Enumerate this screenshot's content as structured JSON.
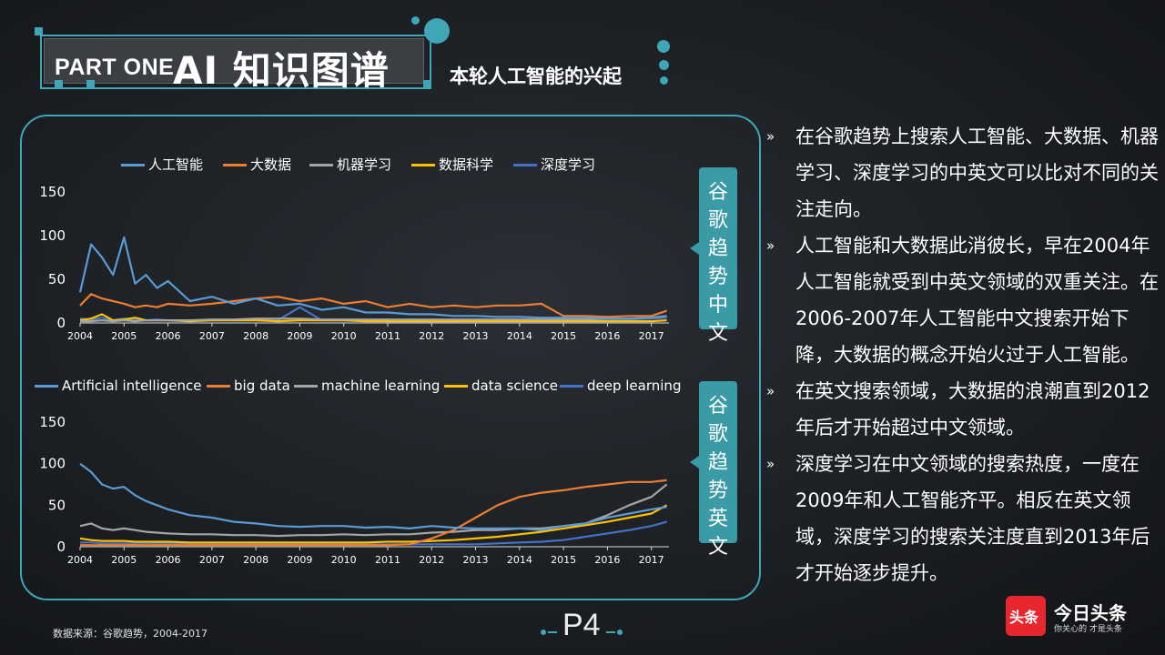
{
  "header": {
    "part_label": "PART ONE",
    "title": "AI 知识图谱",
    "subtitle": "本轮人工智能的兴起"
  },
  "tags": {
    "top": "谷歌趋势中文",
    "bottom": "谷歌趋势英文"
  },
  "bullets": [
    "在谷歌趋势上搜索人工智能、大数据、机器学习、深度学习的中英文可以比对不同的关注走向。",
    "人工智能和大数据此消彼长，早在2004年人工智能就受到中英文领域的双重关注。在2006-2007年人工智能中文搜索开始下降，大数据的概念开始火过于人工智能。",
    "在英文搜索领域，大数据的浪潮直到2012年后才开始超过中文领域。",
    "深度学习在中文领域的搜索热度，一度在2009年和人工智能齐平。相反在英文领域，深度学习的搜索关注度直到2013年后才开始逐步提升。"
  ],
  "bullet_mark": "»",
  "footer": {
    "source": "数据来源：谷歌趋势，2004-2017",
    "page": "P4",
    "logo_text": "头条",
    "brand": "今日头条",
    "slogan": "你关心的 才是头条"
  },
  "colors": {
    "accent": "#3ea6b4",
    "s1": "#5b9bd5",
    "s2": "#ed7d31",
    "s3": "#a5a5a5",
    "s4": "#ffc000",
    "s5": "#4472c4"
  },
  "chart_data": [
    {
      "type": "line",
      "ylim": [
        0,
        150
      ],
      "yticks": [
        "0",
        "50",
        "100",
        "150"
      ],
      "xticks": [
        "2004",
        "2005",
        "2006",
        "2007",
        "2008",
        "2009",
        "2010",
        "2011",
        "2012",
        "2013",
        "2014",
        "2015",
        "2016",
        "2017"
      ],
      "x": [
        2004.0,
        2004.25,
        2004.5,
        2004.75,
        2005.0,
        2005.25,
        2005.5,
        2005.75,
        2006.0,
        2006.5,
        2007.0,
        2007.5,
        2008.0,
        2008.5,
        2009.0,
        2009.5,
        2010.0,
        2010.5,
        2011.0,
        2011.5,
        2012.0,
        2012.5,
        2013.0,
        2013.5,
        2014.0,
        2014.5,
        2015.0,
        2015.5,
        2016.0,
        2016.5,
        2017.0,
        2017.35
      ],
      "series": [
        {
          "name": "人工智能",
          "color": "#5b9bd5",
          "values": [
            35,
            90,
            75,
            55,
            98,
            45,
            55,
            40,
            48,
            25,
            30,
            22,
            28,
            20,
            22,
            15,
            18,
            12,
            12,
            10,
            10,
            8,
            8,
            7,
            7,
            6,
            6,
            6,
            5,
            5,
            6,
            8
          ]
        },
        {
          "name": "大数据",
          "color": "#ed7d31",
          "values": [
            20,
            33,
            28,
            25,
            22,
            18,
            20,
            18,
            22,
            20,
            22,
            25,
            28,
            30,
            25,
            28,
            22,
            25,
            18,
            22,
            18,
            20,
            18,
            20,
            20,
            22,
            8,
            8,
            7,
            8,
            8,
            14
          ]
        },
        {
          "name": "机器学习",
          "color": "#a5a5a5",
          "values": [
            2,
            2,
            3,
            2,
            3,
            2,
            3,
            3,
            3,
            3,
            4,
            4,
            5,
            5,
            5,
            4,
            4,
            4,
            4,
            4,
            4,
            4,
            4,
            4,
            4,
            4,
            4,
            4,
            5,
            5,
            6,
            8
          ]
        },
        {
          "name": "数据科学",
          "color": "#ffc000",
          "values": [
            3,
            5,
            10,
            3,
            4,
            6,
            3,
            3,
            3,
            2,
            3,
            3,
            3,
            2,
            3,
            3,
            3,
            2,
            2,
            2,
            2,
            2,
            2,
            2,
            2,
            2,
            2,
            2,
            2,
            2,
            2,
            3
          ]
        },
        {
          "name": "深度学习",
          "color": "#4472c4",
          "values": [
            5,
            4,
            6,
            3,
            5,
            4,
            3,
            4,
            3,
            3,
            3,
            3,
            3,
            3,
            18,
            3,
            3,
            3,
            2,
            2,
            2,
            2,
            3,
            3,
            3,
            3,
            3,
            3,
            3,
            4,
            5,
            6
          ]
        }
      ]
    },
    {
      "type": "line",
      "ylim": [
        0,
        150
      ],
      "yticks": [
        "0",
        "50",
        "100",
        "150"
      ],
      "xticks": [
        "2004",
        "2005",
        "2006",
        "2007",
        "2008",
        "2009",
        "2010",
        "2011",
        "2012",
        "2013",
        "2014",
        "2015",
        "2016",
        "2017"
      ],
      "x": [
        2004.0,
        2004.25,
        2004.5,
        2004.75,
        2005.0,
        2005.25,
        2005.5,
        2005.75,
        2006.0,
        2006.5,
        2007.0,
        2007.5,
        2008.0,
        2008.5,
        2009.0,
        2009.5,
        2010.0,
        2010.5,
        2011.0,
        2011.5,
        2012.0,
        2012.5,
        2013.0,
        2013.5,
        2014.0,
        2014.5,
        2015.0,
        2015.5,
        2016.0,
        2016.5,
        2017.0,
        2017.35
      ],
      "series": [
        {
          "name": "Artificial intelligence",
          "color": "#5b9bd5",
          "values": [
            100,
            90,
            75,
            70,
            72,
            62,
            55,
            50,
            45,
            38,
            35,
            30,
            28,
            25,
            24,
            25,
            25,
            23,
            24,
            22,
            25,
            23,
            22,
            22,
            22,
            20,
            25,
            28,
            35,
            40,
            45,
            48
          ]
        },
        {
          "name": "big data",
          "color": "#ed7d31",
          "values": [
            2,
            2,
            2,
            2,
            2,
            2,
            2,
            2,
            2,
            2,
            2,
            2,
            2,
            2,
            2,
            2,
            2,
            2,
            2,
            3,
            10,
            20,
            35,
            50,
            60,
            65,
            68,
            72,
            75,
            78,
            78,
            80
          ]
        },
        {
          "name": "machine learning",
          "color": "#a5a5a5",
          "values": [
            25,
            28,
            22,
            20,
            22,
            20,
            18,
            17,
            16,
            15,
            15,
            14,
            14,
            13,
            14,
            14,
            15,
            14,
            15,
            15,
            17,
            18,
            20,
            20,
            22,
            22,
            25,
            28,
            38,
            50,
            60,
            75
          ]
        },
        {
          "name": "data science",
          "color": "#ffc000",
          "values": [
            10,
            8,
            7,
            7,
            7,
            6,
            6,
            6,
            6,
            5,
            5,
            5,
            5,
            5,
            5,
            5,
            5,
            5,
            6,
            6,
            7,
            8,
            10,
            12,
            15,
            18,
            22,
            26,
            30,
            35,
            40,
            50
          ]
        },
        {
          "name": "deep learning",
          "color": "#4472c4",
          "values": [
            5,
            5,
            4,
            4,
            4,
            4,
            4,
            4,
            4,
            3,
            3,
            3,
            3,
            3,
            3,
            3,
            3,
            3,
            3,
            3,
            3,
            3,
            3,
            4,
            5,
            6,
            8,
            12,
            16,
            20,
            25,
            30
          ]
        }
      ]
    }
  ]
}
